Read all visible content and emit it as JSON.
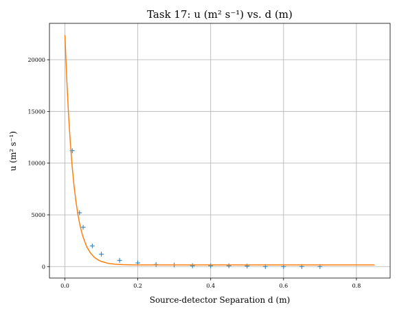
{
  "chart_data": {
    "type": "scatter",
    "title": "Task 17: u ($m^2\\ s^{-1}$) vs. d (m)",
    "title_plain": "Task 17: u (m² s⁻¹) vs. d (m)",
    "xlabel": "Source-detector Separation d (m)",
    "ylabel": "u (m² s⁻¹)",
    "xlim": [
      -0.0425,
      0.8925
    ],
    "ylim": [
      -1110,
      23520
    ],
    "xticks": [
      0.0,
      0.2,
      0.4,
      0.6,
      0.8
    ],
    "xtick_labels": [
      "0.0",
      "0.2",
      "0.4",
      "0.6",
      "0.8"
    ],
    "yticks": [
      0,
      5000,
      10000,
      15000,
      20000
    ],
    "ytick_labels": [
      "0",
      "5000",
      "10000",
      "15000",
      "20000"
    ],
    "grid": true,
    "series": [
      {
        "kind": "scatter",
        "marker": "+",
        "color": "#1f77b4",
        "x": [
          0.02,
          0.04,
          0.05,
          0.075,
          0.1,
          0.15,
          0.2,
          0.25,
          0.3,
          0.35,
          0.4,
          0.45,
          0.5,
          0.55,
          0.6,
          0.65,
          0.7
        ],
        "y": [
          11200,
          5200,
          3800,
          2000,
          1200,
          600,
          350,
          200,
          150,
          80,
          80,
          80,
          50,
          0,
          0,
          0,
          0
        ]
      },
      {
        "kind": "line",
        "color": "#ff7f0e",
        "x": [
          0.0,
          0.005,
          0.01,
          0.015,
          0.02,
          0.025,
          0.03,
          0.035,
          0.04,
          0.045,
          0.05,
          0.06,
          0.07,
          0.08,
          0.09,
          0.1,
          0.12,
          0.14,
          0.16,
          0.18,
          0.2,
          0.25,
          0.3,
          0.4,
          0.5,
          0.6,
          0.7,
          0.8,
          0.85
        ],
        "y": [
          22370,
          18090,
          14640,
          11860,
          9610,
          7800,
          6340,
          5160,
          4210,
          3440,
          2820,
          1910,
          1310,
          919,
          660,
          490,
          302,
          220,
          185,
          169,
          162,
          157,
          156,
          156,
          156,
          156,
          156,
          156,
          156
        ]
      }
    ]
  }
}
